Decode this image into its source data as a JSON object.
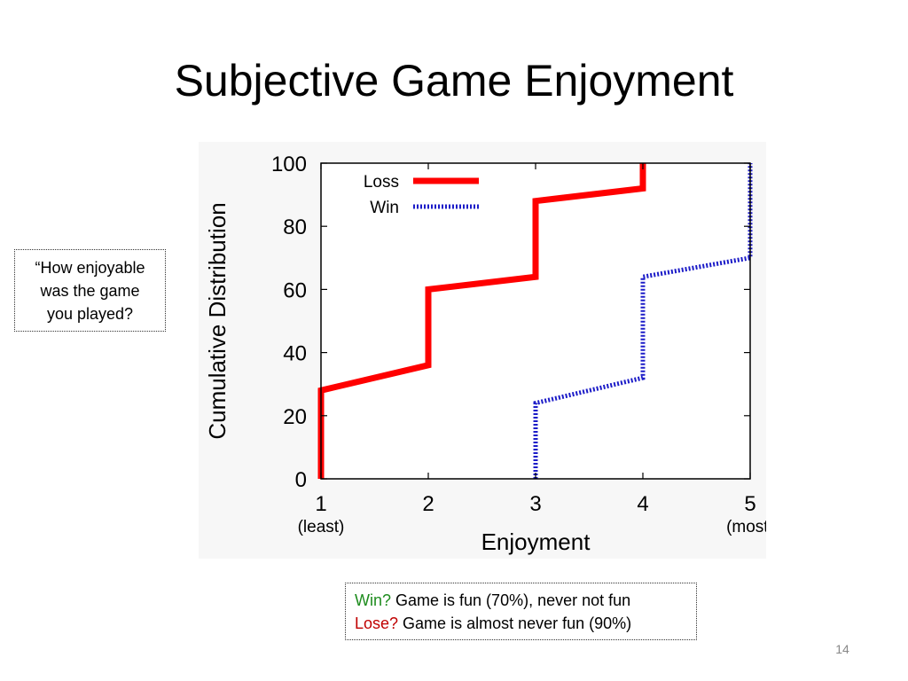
{
  "slide": {
    "title": "Subjective Game Enjoyment",
    "page_number": "14"
  },
  "question_callout": {
    "lines": [
      "“How enjoyable",
      "was the game",
      "you played?"
    ]
  },
  "summary_callout": {
    "win_label": "Win?",
    "win_text": " Game is fun (70%), never not fun",
    "lose_label": "Lose?",
    "lose_text": " Game is almost never fun (90%)",
    "win_color": "#1e8c1e",
    "lose_color": "#c00000"
  },
  "chart_data": {
    "type": "line",
    "xlabel": "Enjoyment",
    "ylabel": "Cumulative Distribution",
    "xlim": [
      1,
      5
    ],
    "ylim": [
      0,
      100
    ],
    "x_ticks": [
      "1",
      "2",
      "3",
      "4",
      "5"
    ],
    "x_tick_sublabels": {
      "1": "(least)",
      "5": "(most)"
    },
    "y_ticks": [
      "0",
      "20",
      "40",
      "60",
      "80",
      "100"
    ],
    "grid": false,
    "legend_position": "top-left",
    "series": [
      {
        "name": "Loss",
        "color": "#ff0000",
        "style": "solid",
        "points": [
          [
            1,
            0
          ],
          [
            1,
            28
          ],
          [
            2,
            36
          ],
          [
            2,
            60
          ],
          [
            3,
            64
          ],
          [
            3,
            88
          ],
          [
            4,
            92
          ],
          [
            4,
            100
          ]
        ]
      },
      {
        "name": "Win",
        "color": "#1c1cc8",
        "style": "dotted",
        "points": [
          [
            3,
            0
          ],
          [
            3,
            24
          ],
          [
            4,
            32
          ],
          [
            4,
            64
          ],
          [
            5,
            70
          ],
          [
            5,
            100
          ]
        ]
      }
    ]
  }
}
